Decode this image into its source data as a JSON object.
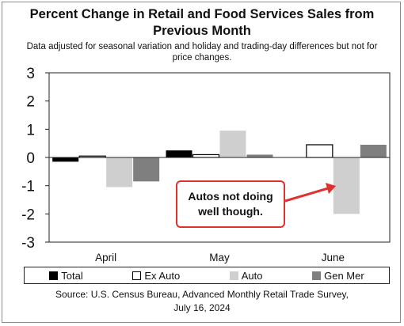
{
  "chart_data": {
    "type": "bar",
    "title_line1": "Percent Change in Retail and Food Services Sales from",
    "title_line2": "Previous Month",
    "subtitle_line1": "Data adjusted for seasonal variation and holiday and trading-day differences but not for",
    "subtitle_line2": "price changes.",
    "categories": [
      "April",
      "May",
      "June"
    ],
    "series": [
      {
        "name": "Total",
        "values": [
          -0.15,
          0.25,
          0.0
        ],
        "color": "#000000"
      },
      {
        "name": "Ex Auto",
        "values": [
          0.05,
          0.1,
          0.45
        ],
        "color": "#ffffff"
      },
      {
        "name": "Auto",
        "values": [
          -1.05,
          0.95,
          -2.0
        ],
        "color": "#cfcfcf"
      },
      {
        "name": "Gen Mer",
        "values": [
          -0.85,
          0.1,
          0.45
        ],
        "color": "#7f7f7f"
      }
    ],
    "ylim": [
      -3,
      3
    ],
    "yticks": [
      "3",
      "2",
      "1",
      "0",
      "-1",
      "-2",
      "-3"
    ],
    "grid": false,
    "legend_position": "bottom",
    "annotation": {
      "line1": "Autos not doing",
      "line2": "well though.",
      "color": "#e03131"
    },
    "source_line1": "Source: U.S. Census Bureau, Advanced Monthly Retail Trade Survey,",
    "source_line2": "July 16, 2024"
  }
}
